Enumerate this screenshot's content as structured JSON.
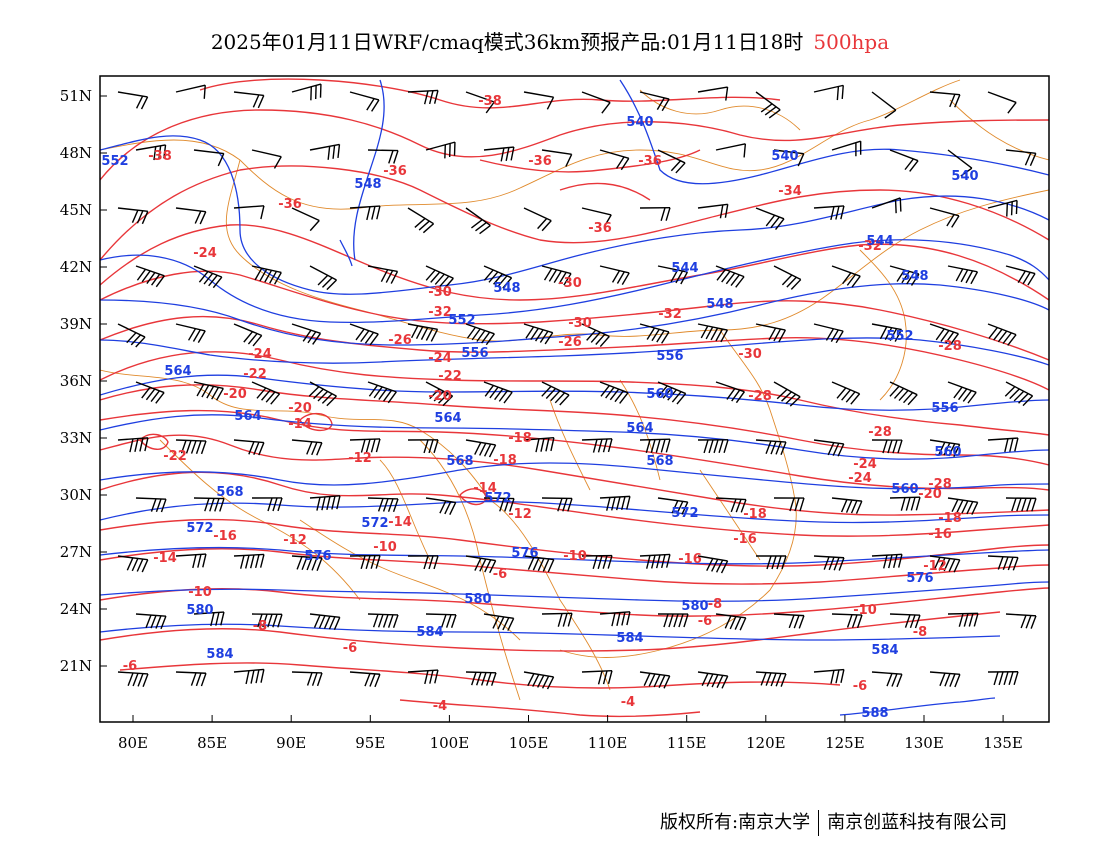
{
  "title": {
    "main": "2025年01月11日WRF/cmaq模式36km预报产品:01月11日18时",
    "level": "500hpa",
    "level_color": "#e8363a"
  },
  "axes": {
    "lat_labels": [
      "51N",
      "48N",
      "45N",
      "42N",
      "39N",
      "36N",
      "33N",
      "30N",
      "27N",
      "24N",
      "21N"
    ],
    "lon_labels": [
      "80E",
      "85E",
      "90E",
      "95E",
      "100E",
      "105E",
      "110E",
      "115E",
      "120E",
      "125E",
      "130E",
      "135E"
    ]
  },
  "colors": {
    "geopotential": "#1f3fe0",
    "temperature": "#e8363a",
    "boundary": "#e08a2c",
    "barb": "#000000"
  },
  "contour_labels": {
    "temperature": [
      "-38",
      "-36",
      "-34",
      "-32",
      "-30",
      "-28",
      "-26",
      "-24",
      "-22",
      "-20",
      "-18",
      "-16",
      "-14",
      "-12",
      "-10",
      "-8",
      "-6",
      "-4"
    ],
    "geopotential": [
      "540",
      "544",
      "548",
      "552",
      "556",
      "560",
      "564",
      "568",
      "572",
      "576",
      "580",
      "584",
      "588"
    ]
  },
  "footer": {
    "left": "版权所有:南京大学",
    "right": "南京创蓝科技有限公司"
  }
}
